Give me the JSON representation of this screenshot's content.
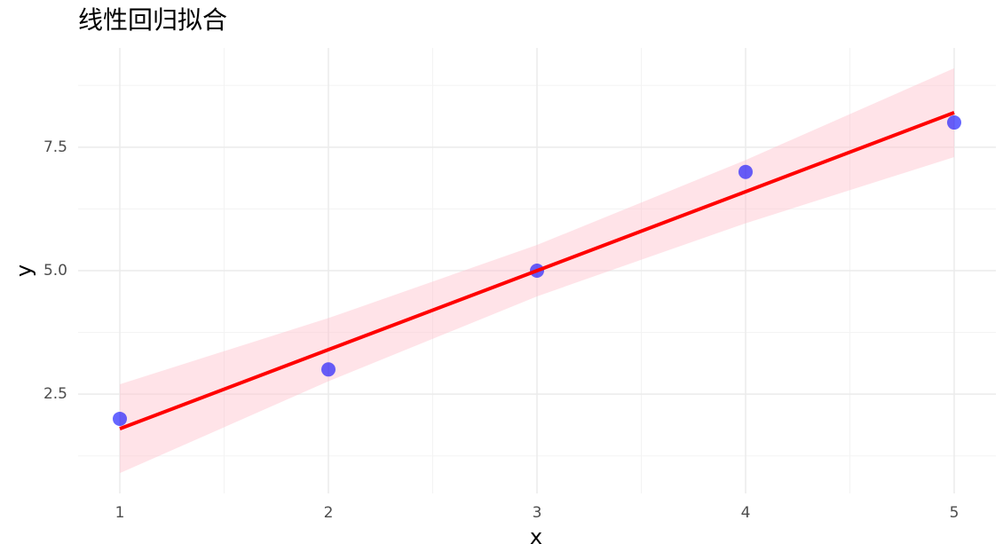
{
  "chart_data": {
    "type": "scatter",
    "title": "线性回归拟合",
    "x_label": "x",
    "y_label": "y",
    "x": [
      1,
      2,
      3,
      4,
      5
    ],
    "values": [
      2,
      3,
      5,
      7,
      8
    ],
    "color": "#0000ff",
    "point_alpha": 0.6,
    "fit": {
      "values": [
        1.8,
        3.4,
        5.0,
        6.6,
        8.2
      ],
      "color": "#ff0000"
    },
    "band": {
      "lower": [
        0.9,
        2.76,
        4.48,
        5.96,
        7.3
      ],
      "upper": [
        2.7,
        4.04,
        5.52,
        7.24,
        9.1
      ],
      "color": "#ffc0cb",
      "alpha": 0.45
    },
    "xlim": [
      0.8,
      5.2
    ],
    "ylim": [
      0.49,
      9.51
    ],
    "xticks": [
      1,
      2,
      3,
      4,
      5
    ],
    "yticks": [
      2.5,
      {
        "value": 5.0,
        "label": "5.0"
      },
      7.5
    ],
    "x_minor_grid": [
      1.5,
      2.5,
      3.5,
      4.5
    ],
    "y_minor_grid": [
      1.25,
      3.75,
      6.25,
      8.75
    ],
    "grid": true
  }
}
